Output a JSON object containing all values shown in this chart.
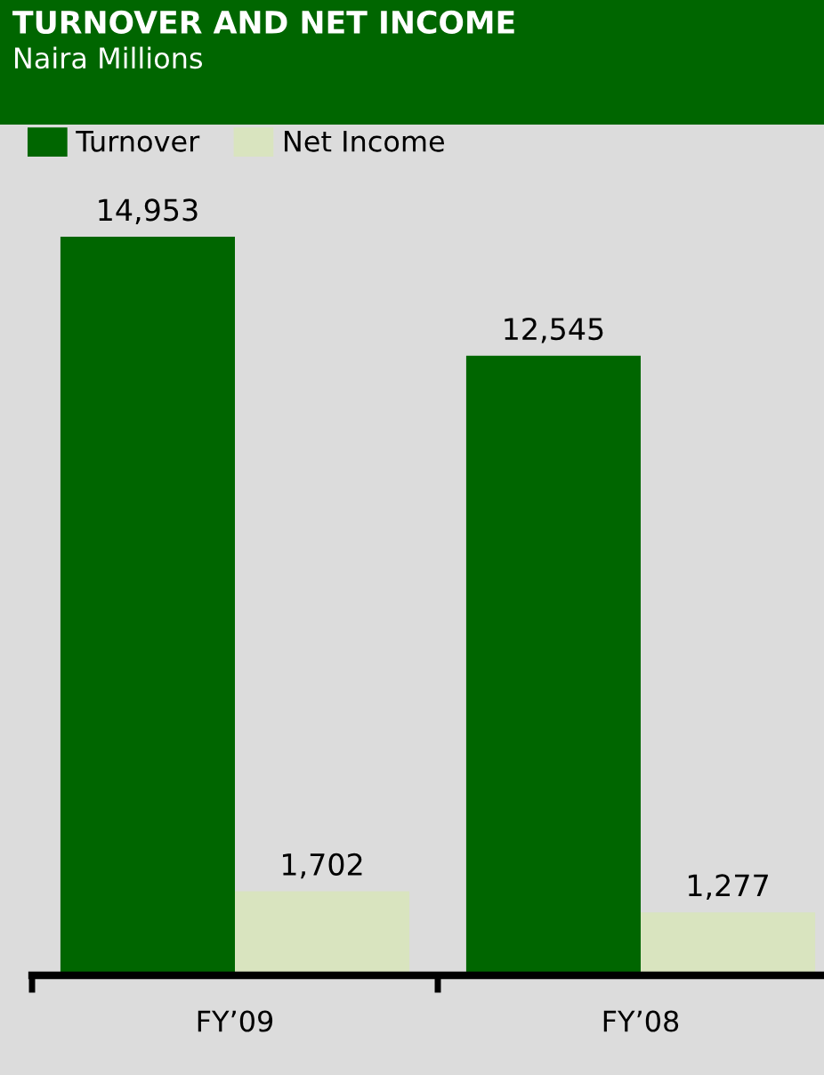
{
  "chart_data": {
    "type": "bar",
    "title": "TURNOVER AND NET INCOME",
    "subtitle": "Naira Millions",
    "categories": [
      "FY’09",
      "FY’08"
    ],
    "series": [
      {
        "name": "Turnover",
        "color": "#006600",
        "values": [
          14953,
          12545
        ],
        "value_labels": [
          "14,953",
          "12,545"
        ]
      },
      {
        "name": "Net Income",
        "color": "#d9e4bf",
        "values": [
          1702,
          1277
        ],
        "value_labels": [
          "1,702",
          "1,277"
        ]
      }
    ],
    "legend": "top left",
    "grid": false
  }
}
